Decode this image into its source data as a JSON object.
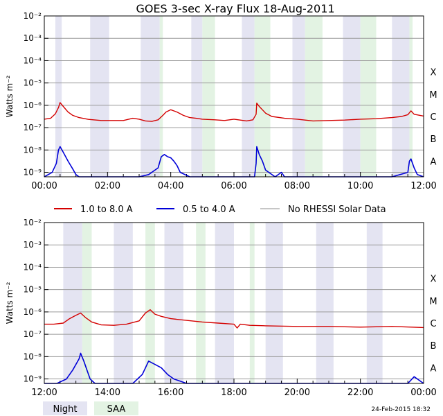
{
  "title": "GOES 3-sec X-ray Flux   18-Aug-2011",
  "timestamp": "24-Feb-2015 18:32",
  "colors": {
    "long": "#d40000",
    "short": "#0000d8",
    "norhessi": "#8c8c8c",
    "night": "#e4e4f2",
    "saa": "#e3f3e3",
    "grid": "#9a9a9a"
  },
  "legend": {
    "long": "1.0 to 8.0 A",
    "short": "0.5 to 4.0 A",
    "norhessi": "No RHESSI Solar Data",
    "night": "Night",
    "saa": "SAA"
  },
  "chart_data": [
    {
      "type": "line",
      "title": "GOES 3-sec X-ray Flux   18-Aug-2011",
      "ylabel": "Watts m⁻²",
      "ylim_exp": [
        -9.2,
        -2
      ],
      "yticks": [
        "10⁻²",
        "10⁻³",
        "10⁻⁴",
        "10⁻⁵",
        "10⁻⁶",
        "10⁻⁷",
        "10⁻⁸",
        "10⁻⁹"
      ],
      "flare_classes": [
        "X",
        "M",
        "C",
        "B",
        "A"
      ],
      "xlim_hours": [
        0,
        12
      ],
      "xticks": [
        "00:00",
        "02:00",
        "04:00",
        "06:00",
        "08:00",
        "10:00",
        "12:00"
      ],
      "night_hours": [
        [
          0.35,
          0.55
        ],
        [
          1.45,
          2.05
        ],
        [
          3.05,
          3.65
        ],
        [
          4.65,
          5.0
        ],
        [
          6.25,
          6.65
        ],
        [
          7.85,
          8.25
        ],
        [
          9.45,
          10.0
        ],
        [
          11.0,
          11.55
        ]
      ],
      "saa_hours": [
        [
          3.65,
          3.75
        ],
        [
          5.0,
          5.4
        ],
        [
          6.65,
          7.15
        ],
        [
          8.25,
          8.8
        ],
        [
          10.0,
          10.5
        ],
        [
          11.55,
          11.65
        ]
      ],
      "series": [
        {
          "name": "1.0 to 8.0 A",
          "x": [
            0,
            0.2,
            0.35,
            0.45,
            0.5,
            0.6,
            0.75,
            0.9,
            1.1,
            1.4,
            1.8,
            2.5,
            2.8,
            3.0,
            3.2,
            3.4,
            3.6,
            3.75,
            3.85,
            4.0,
            4.2,
            4.4,
            4.6,
            4.8,
            5.0,
            5.4,
            5.7,
            6.0,
            6.4,
            6.6,
            6.7,
            6.72,
            6.8,
            6.9,
            7.0,
            7.2,
            7.6,
            8.0,
            8.5,
            9.0,
            9.5,
            10.0,
            10.5,
            11.0,
            11.3,
            11.5,
            11.6,
            11.7,
            12.0
          ],
          "y": [
            -6.62,
            -6.58,
            -6.38,
            -6.1,
            -5.88,
            -6.05,
            -6.3,
            -6.45,
            -6.55,
            -6.63,
            -6.68,
            -6.68,
            -6.58,
            -6.62,
            -6.7,
            -6.72,
            -6.65,
            -6.45,
            -6.3,
            -6.2,
            -6.3,
            -6.45,
            -6.55,
            -6.58,
            -6.62,
            -6.65,
            -6.68,
            -6.62,
            -6.7,
            -6.65,
            -6.4,
            -5.9,
            -6.05,
            -6.2,
            -6.35,
            -6.5,
            -6.58,
            -6.62,
            -6.7,
            -6.68,
            -6.66,
            -6.62,
            -6.6,
            -6.55,
            -6.5,
            -6.42,
            -6.25,
            -6.4,
            -6.48
          ]
        },
        {
          "name": "0.5 to 4.0 A",
          "x": [
            0,
            0.25,
            0.38,
            0.45,
            0.5,
            0.6,
            0.75,
            0.9,
            1.0,
            1.1,
            1.3,
            2.0,
            3.0,
            3.3,
            3.6,
            3.7,
            3.8,
            3.9,
            4.0,
            4.1,
            4.2,
            4.3,
            4.6,
            5.5,
            6.3,
            6.65,
            6.7,
            6.72,
            6.8,
            6.9,
            7.0,
            7.3,
            7.5,
            7.6,
            8.0,
            9.0,
            10.0,
            10.5,
            11.0,
            11.5,
            11.55,
            11.6,
            11.7,
            11.8,
            12.0
          ],
          "y": [
            -9.2,
            -9.0,
            -8.6,
            -8.0,
            -7.85,
            -8.1,
            -8.5,
            -8.85,
            -9.1,
            -9.2,
            -9.2,
            -9.2,
            -9.2,
            -9.1,
            -8.8,
            -8.3,
            -8.2,
            -8.3,
            -8.35,
            -8.5,
            -8.7,
            -9.0,
            -9.2,
            -9.2,
            -9.2,
            -9.2,
            -8.6,
            -7.85,
            -8.2,
            -8.5,
            -8.9,
            -9.2,
            -9.0,
            -9.2,
            -9.2,
            -9.2,
            -9.2,
            -9.2,
            -9.2,
            -9.0,
            -8.5,
            -8.4,
            -8.8,
            -9.1,
            -9.2
          ]
        }
      ]
    },
    {
      "type": "line",
      "ylabel": "Watts m⁻²",
      "ylim_exp": [
        -9.2,
        -2
      ],
      "yticks": [
        "10⁻²",
        "10⁻³",
        "10⁻⁴",
        "10⁻⁵",
        "10⁻⁶",
        "10⁻⁷",
        "10⁻⁸",
        "10⁻⁹"
      ],
      "flare_classes": [
        "X",
        "M",
        "C",
        "B",
        "A"
      ],
      "xlim_hours": [
        12,
        24
      ],
      "xticks": [
        "12:00",
        "14:00",
        "16:00",
        "18:00",
        "20:00",
        "22:00",
        "00:00"
      ],
      "night_hours": [
        [
          12.6,
          13.2
        ],
        [
          14.2,
          14.8
        ],
        [
          15.8,
          16.4
        ],
        [
          17.4,
          18.0
        ],
        [
          19.0,
          19.55
        ],
        [
          20.6,
          21.15
        ],
        [
          22.2,
          22.7
        ]
      ],
      "saa_hours": [
        [
          13.2,
          13.5
        ],
        [
          15.2,
          15.5
        ],
        [
          16.8,
          17.1
        ],
        [
          18.5,
          18.65
        ]
      ],
      "series": [
        {
          "name": "1.0 to 8.0 A",
          "x": [
            12,
            12.3,
            12.6,
            12.8,
            13.0,
            13.15,
            13.3,
            13.5,
            13.8,
            14.2,
            14.6,
            15.0,
            15.2,
            15.35,
            15.5,
            15.7,
            16.0,
            16.5,
            17.0,
            17.5,
            18.0,
            18.1,
            18.2,
            18.5,
            19.0,
            20.0,
            21.0,
            22.0,
            23.0,
            24.0
          ],
          "y": [
            -6.55,
            -6.55,
            -6.5,
            -6.3,
            -6.15,
            -6.05,
            -6.25,
            -6.45,
            -6.58,
            -6.6,
            -6.55,
            -6.4,
            -6.05,
            -5.9,
            -6.1,
            -6.2,
            -6.3,
            -6.38,
            -6.45,
            -6.5,
            -6.55,
            -6.72,
            -6.55,
            -6.6,
            -6.62,
            -6.65,
            -6.65,
            -6.68,
            -6.65,
            -6.7
          ]
        },
        {
          "name": "0.5 to 4.0 A",
          "x": [
            12,
            12.4,
            12.7,
            12.9,
            13.1,
            13.15,
            13.25,
            13.35,
            13.45,
            13.6,
            14.0,
            14.8,
            15.1,
            15.3,
            15.5,
            15.7,
            15.9,
            16.1,
            16.3,
            16.5,
            16.8,
            17.5,
            18.5,
            19.5,
            20.5,
            21.5,
            22.5,
            23.0,
            23.5,
            23.7,
            24.0
          ],
          "y": [
            -9.2,
            -9.2,
            -9.0,
            -8.6,
            -8.1,
            -7.85,
            -8.2,
            -8.6,
            -9.0,
            -9.2,
            -9.2,
            -9.2,
            -8.8,
            -8.2,
            -8.35,
            -8.5,
            -8.8,
            -9.0,
            -9.1,
            -9.2,
            -9.2,
            -9.2,
            -9.2,
            -9.2,
            -9.2,
            -9.2,
            -9.2,
            -9.2,
            -9.2,
            -8.9,
            -9.2
          ]
        }
      ]
    }
  ]
}
